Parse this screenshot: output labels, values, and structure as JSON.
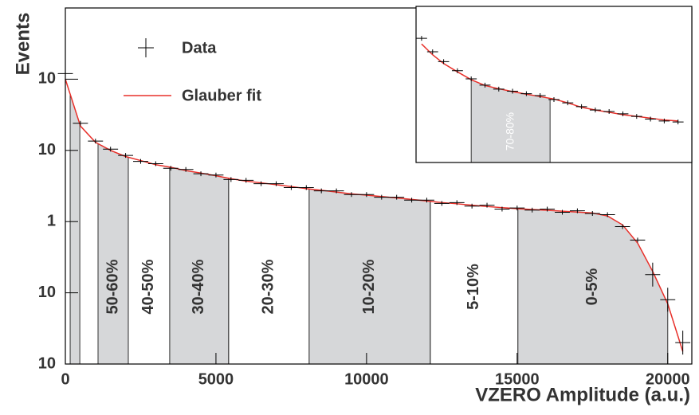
{
  "chart_data": [
    {
      "type": "histogram-log",
      "ylabel": "Events",
      "xlabel": "VZERO Amplitude (a.u.)",
      "log_y": true,
      "xlim": [
        0,
        20800
      ],
      "ylim": [
        0.01,
        1000
      ],
      "xticks": [
        0,
        5000,
        10000,
        15000,
        20000
      ],
      "yticks": [
        {
          "value": 100,
          "label": "10"
        },
        10,
        1,
        {
          "value": 0.1,
          "label": "10"
        },
        {
          "value": 0.01,
          "label": "10"
        }
      ],
      "legend": "upper left",
      "x": [
        0,
        500,
        1000,
        1500,
        2000,
        2500,
        3000,
        3500,
        4000,
        4500,
        5000,
        5500,
        6000,
        6500,
        7000,
        7500,
        8000,
        8500,
        9000,
        9500,
        10000,
        10500,
        11000,
        11500,
        12000,
        12500,
        13000,
        13500,
        14000,
        14500,
        15000,
        15500,
        16000,
        16500,
        17000,
        17500,
        18000,
        18500,
        19000,
        19500,
        20000,
        20500
      ],
      "series": [
        {
          "name": "Data",
          "color": "#000000",
          "style": "cross",
          "values": [
            120,
            24,
            13.5,
            10.4,
            8.5,
            7.0,
            6.5,
            5.6,
            5.4,
            4.7,
            4.5,
            3.9,
            3.8,
            3.4,
            3.4,
            3.0,
            3.0,
            2.7,
            2.7,
            2.4,
            2.4,
            2.2,
            2.2,
            2.0,
            2.0,
            1.8,
            1.85,
            1.65,
            1.7,
            1.5,
            1.55,
            1.45,
            1.5,
            1.35,
            1.42,
            1.3,
            1.25,
            0.85,
            0.55,
            0.18,
            0.08,
            0.02
          ]
        },
        {
          "name": "Glauber fit",
          "color": "#e8302a",
          "style": "line",
          "values": [
            100,
            22,
            13,
            10,
            8.2,
            7.2,
            6.3,
            5.8,
            5.2,
            4.8,
            4.4,
            4.0,
            3.7,
            3.5,
            3.3,
            3.1,
            2.9,
            2.75,
            2.6,
            2.45,
            2.35,
            2.25,
            2.15,
            2.05,
            1.95,
            1.85,
            1.78,
            1.7,
            1.63,
            1.57,
            1.52,
            1.48,
            1.44,
            1.4,
            1.36,
            1.32,
            1.2,
            0.9,
            0.5,
            0.2,
            0.07,
            0.015
          ]
        }
      ],
      "bands": [
        {
          "range": [
            160,
            480
          ],
          "shaded": true
        },
        {
          "label": "50-60%",
          "range": [
            1085,
            2090
          ],
          "shaded": true
        },
        {
          "label": "40-50%",
          "range": [
            2090,
            3465
          ],
          "shaded": false
        },
        {
          "label": "30-40%",
          "range": [
            3465,
            5420
          ],
          "shaded": true
        },
        {
          "label": "20-30%",
          "range": [
            5420,
            8095
          ],
          "shaded": false
        },
        {
          "label": "10-20%",
          "range": [
            8095,
            12116
          ],
          "shaded": true
        },
        {
          "label": "5-10%",
          "range": [
            12116,
            15026
          ],
          "shaded": false
        },
        {
          "label": "0-5%",
          "range": [
            15026,
            20000
          ],
          "shaded": true
        }
      ]
    },
    {
      "type": "histogram-log",
      "log_y": true,
      "xlim": [
        0,
        1000
      ],
      "ylim": [
        10,
        1000
      ],
      "x": [
        20,
        60,
        100,
        150,
        200,
        250,
        300,
        350,
        400,
        450,
        500,
        550,
        600,
        650,
        700,
        750,
        800,
        850,
        900,
        950
      ],
      "series": [
        {
          "name": "Data",
          "color": "#000000",
          "style": "cross",
          "values": [
            390,
            262,
            196,
            150,
            118,
            98,
            87,
            82,
            76,
            72,
            64,
            58,
            52,
            47,
            45,
            42,
            39,
            36,
            34,
            33
          ]
        },
        {
          "name": "Glauber fit",
          "color": "#e8302a",
          "style": "line",
          "values": [
            330,
            240,
            185,
            145,
            115,
            97,
            88,
            81,
            75,
            70,
            65,
            58,
            51,
            47,
            44,
            41,
            39,
            37,
            35,
            34
          ]
        }
      ],
      "bands": [
        {
          "label": "70-80%",
          "range": [
            200,
            486
          ],
          "shaded": true
        }
      ]
    }
  ]
}
